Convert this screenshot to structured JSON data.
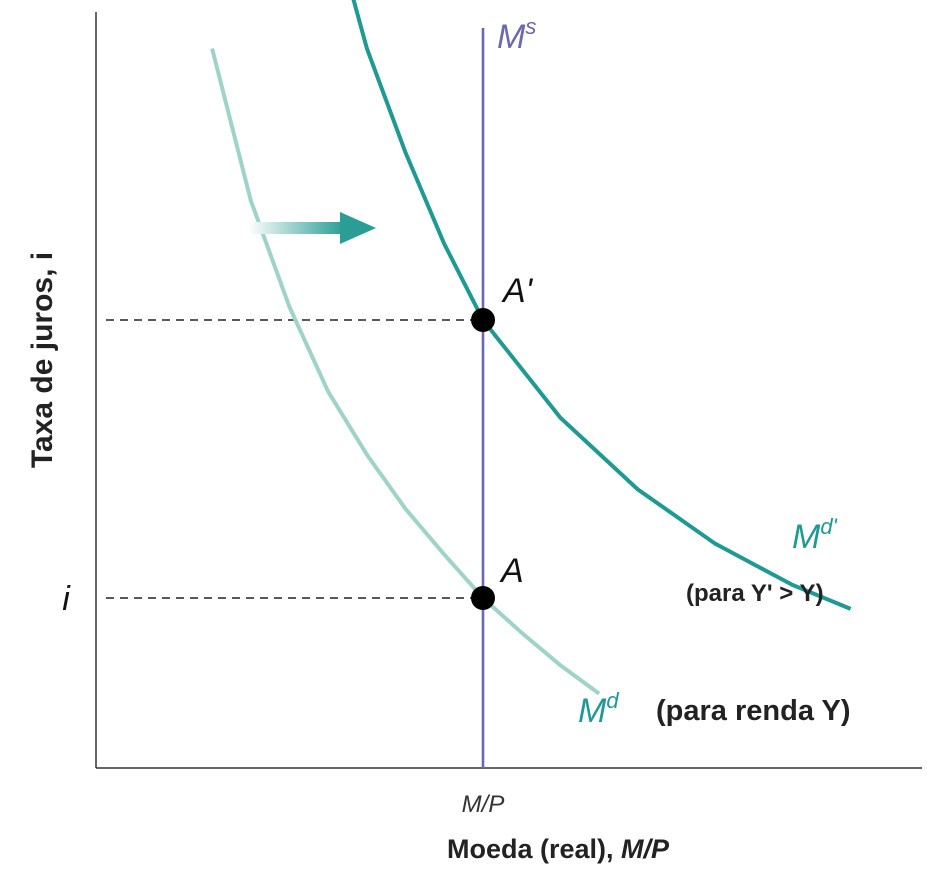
{
  "chart_data": {
    "type": "line",
    "title": "",
    "xlabel": {
      "text": "Moeda (real), ",
      "italic_part": "M/P"
    },
    "ylabel": "Taxa de juros, i",
    "x_ticks": [
      "M/P"
    ],
    "y_ticks": [
      "i"
    ],
    "grid": false,
    "colors": {
      "money_supply": "#6b68b0",
      "demand_initial": "#9fd3c9",
      "demand_shifted": "#1f9a92",
      "shift_arrow": "#2a9d95"
    },
    "series": [
      {
        "name": "M^s",
        "label_base": "M",
        "label_sup": "s",
        "kind": "vertical",
        "x": 1.0
      },
      {
        "name": "M^d",
        "label_base": "M",
        "label_sup": "d",
        "note": "(para renda Y)",
        "x": [
          0.3,
          0.4,
          0.5,
          0.6,
          0.7,
          0.8,
          0.9,
          1.0,
          1.1,
          1.2,
          1.3
        ],
        "y": [
          3.3,
          2.6,
          2.11,
          1.72,
          1.43,
          1.18,
          0.97,
          0.77,
          0.61,
          0.46,
          0.33
        ]
      },
      {
        "name": "M^d'",
        "label_base": "M",
        "label_sup": "d'",
        "note": "(para Y' > Y)",
        "x": [
          0.6,
          0.7,
          0.8,
          0.9,
          1.0,
          1.2,
          1.4,
          1.6,
          1.8,
          1.95
        ],
        "y": [
          3.95,
          3.3,
          2.82,
          2.4,
          2.05,
          1.6,
          1.27,
          1.02,
          0.83,
          0.72
        ]
      }
    ],
    "points": [
      {
        "label": "A",
        "x": 1.0,
        "y": 0.77
      },
      {
        "label": "A'",
        "x": 1.0,
        "y": 2.05
      }
    ],
    "annotations": [
      {
        "type": "arrow",
        "direction": "right",
        "meaning": "shift of money demand"
      }
    ],
    "xlim": [
      0,
      2.2
    ],
    "ylim": [
      0,
      4.2
    ]
  }
}
